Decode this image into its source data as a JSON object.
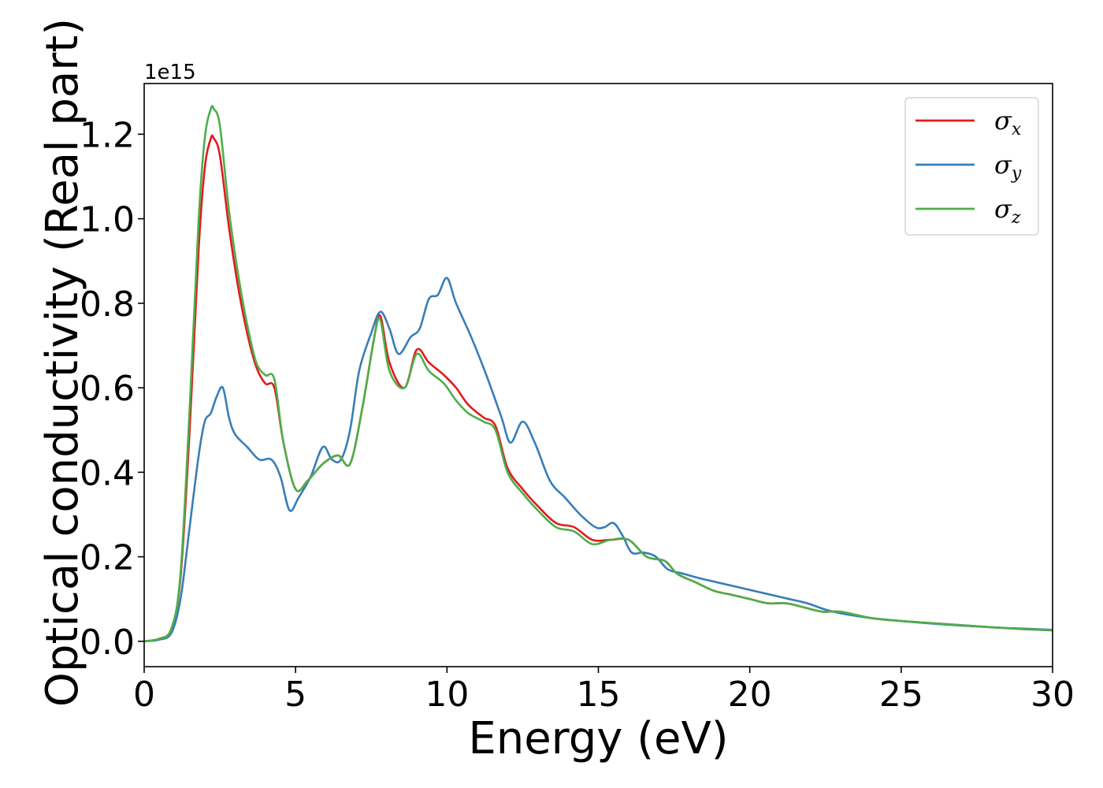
{
  "chart_data": {
    "type": "line",
    "title": "",
    "xlabel": "Energy (eV)",
    "ylabel": "Optical conductivity (Real part)",
    "y_offset_text": "1e15",
    "xlim": [
      0,
      30
    ],
    "ylim": [
      -0.06,
      1.32
    ],
    "grid": false,
    "legend_position": "top-right",
    "x_ticks": [
      "0",
      "5",
      "10",
      "15",
      "20",
      "25",
      "30"
    ],
    "y_ticks": [
      "0.0",
      "0.2",
      "0.4",
      "0.6",
      "0.8",
      "1.0",
      "1.2"
    ],
    "x_tick_values": [
      0,
      5,
      10,
      15,
      20,
      25,
      30
    ],
    "y_tick_values": [
      0.0,
      0.2,
      0.4,
      0.6,
      0.8,
      1.0,
      1.2
    ],
    "series": [
      {
        "name": "σx",
        "symbol": "σ",
        "subscript": "x",
        "color": "#e31a1c",
        "x": [
          0,
          0.5,
          0.9,
          1.2,
          1.5,
          1.8,
          2.0,
          2.2,
          2.3,
          2.5,
          2.8,
          3.1,
          3.4,
          3.7,
          4.0,
          4.3,
          4.6,
          5.0,
          5.4,
          5.9,
          6.4,
          6.8,
          7.2,
          7.6,
          7.8,
          8.1,
          8.6,
          9.0,
          9.4,
          9.9,
          10.3,
          10.7,
          11.2,
          11.6,
          12.0,
          12.5,
          13.0,
          13.6,
          14.2,
          14.8,
          15.4,
          16.0,
          16.6,
          17.2,
          17.6,
          18.2,
          18.8,
          19.4,
          20.0,
          20.6,
          21.2,
          21.8,
          22.4,
          23.0,
          24.0,
          25.0,
          26.0,
          27.0,
          28.0,
          29.0,
          30.0
        ],
        "y": [
          0.0,
          0.006,
          0.03,
          0.15,
          0.5,
          0.93,
          1.12,
          1.19,
          1.19,
          1.15,
          0.98,
          0.84,
          0.73,
          0.65,
          0.61,
          0.6,
          0.47,
          0.36,
          0.38,
          0.42,
          0.44,
          0.42,
          0.55,
          0.72,
          0.77,
          0.66,
          0.6,
          0.69,
          0.66,
          0.63,
          0.6,
          0.56,
          0.53,
          0.51,
          0.41,
          0.36,
          0.32,
          0.28,
          0.27,
          0.24,
          0.24,
          0.24,
          0.2,
          0.19,
          0.16,
          0.14,
          0.12,
          0.11,
          0.1,
          0.09,
          0.09,
          0.08,
          0.07,
          0.07,
          0.055,
          0.048,
          0.043,
          0.038,
          0.033,
          0.029,
          0.026
        ]
      },
      {
        "name": "σy",
        "symbol": "σ",
        "subscript": "y",
        "color": "#377eb8",
        "x": [
          0,
          0.5,
          0.9,
          1.2,
          1.5,
          1.8,
          2.0,
          2.2,
          2.4,
          2.6,
          2.8,
          3.0,
          3.4,
          3.8,
          4.2,
          4.5,
          4.8,
          5.1,
          5.5,
          5.9,
          6.2,
          6.5,
          6.8,
          7.1,
          7.5,
          7.8,
          8.1,
          8.4,
          8.8,
          9.1,
          9.4,
          9.7,
          10.0,
          10.3,
          10.8,
          11.3,
          11.8,
          12.1,
          12.5,
          12.9,
          13.4,
          13.9,
          14.4,
          14.9,
          15.2,
          15.5,
          15.8,
          16.1,
          16.5,
          16.9,
          17.3,
          17.8,
          18.3,
          18.9,
          19.5,
          20.1,
          20.7,
          21.3,
          21.9,
          22.5,
          23.1,
          24.0,
          25.0,
          26.0,
          27.0,
          28.0,
          29.0,
          30.0
        ],
        "y": [
          0.0,
          0.004,
          0.02,
          0.1,
          0.27,
          0.44,
          0.52,
          0.54,
          0.58,
          0.6,
          0.53,
          0.49,
          0.46,
          0.43,
          0.43,
          0.39,
          0.31,
          0.34,
          0.39,
          0.46,
          0.43,
          0.43,
          0.5,
          0.64,
          0.73,
          0.78,
          0.74,
          0.68,
          0.72,
          0.74,
          0.81,
          0.82,
          0.86,
          0.8,
          0.72,
          0.63,
          0.53,
          0.47,
          0.52,
          0.47,
          0.38,
          0.34,
          0.3,
          0.27,
          0.27,
          0.28,
          0.25,
          0.21,
          0.21,
          0.2,
          0.17,
          0.16,
          0.15,
          0.14,
          0.13,
          0.12,
          0.11,
          0.1,
          0.09,
          0.075,
          0.065,
          0.055,
          0.048,
          0.042,
          0.037,
          0.033,
          0.03,
          0.027
        ]
      },
      {
        "name": "σz",
        "symbol": "σ",
        "subscript": "z",
        "color": "#4daf4a",
        "x": [
          0,
          0.5,
          0.9,
          1.2,
          1.5,
          1.8,
          2.0,
          2.2,
          2.3,
          2.5,
          2.8,
          3.1,
          3.4,
          3.7,
          4.0,
          4.3,
          4.6,
          5.0,
          5.4,
          5.9,
          6.4,
          6.8,
          7.2,
          7.6,
          7.8,
          8.1,
          8.6,
          9.0,
          9.4,
          9.9,
          10.3,
          10.7,
          11.2,
          11.6,
          12.0,
          12.5,
          13.0,
          13.6,
          14.2,
          14.8,
          15.4,
          16.0,
          16.6,
          17.2,
          17.6,
          18.2,
          18.8,
          19.4,
          20.0,
          20.6,
          21.2,
          21.8,
          22.4,
          23.0,
          24.0,
          25.0,
          26.0,
          27.0,
          28.0,
          29.0,
          30.0
        ],
        "y": [
          0.0,
          0.006,
          0.03,
          0.16,
          0.55,
          1.0,
          1.19,
          1.26,
          1.26,
          1.22,
          1.02,
          0.87,
          0.75,
          0.66,
          0.63,
          0.62,
          0.47,
          0.36,
          0.38,
          0.42,
          0.44,
          0.42,
          0.55,
          0.72,
          0.76,
          0.64,
          0.6,
          0.68,
          0.64,
          0.61,
          0.57,
          0.54,
          0.52,
          0.5,
          0.4,
          0.35,
          0.31,
          0.27,
          0.26,
          0.23,
          0.24,
          0.24,
          0.2,
          0.19,
          0.16,
          0.14,
          0.12,
          0.11,
          0.1,
          0.09,
          0.09,
          0.08,
          0.07,
          0.07,
          0.055,
          0.048,
          0.043,
          0.038,
          0.033,
          0.029,
          0.026
        ]
      }
    ]
  }
}
